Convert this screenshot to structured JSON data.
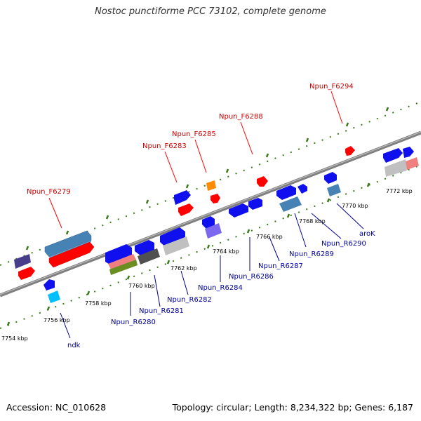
{
  "title": "Nostoc punctiforme PCC 73102, complete genome",
  "footer": {
    "accession": "Accession: NC_010628",
    "summary": "Topology: circular; Length: 8,234,322 bp; Genes: 6,187"
  },
  "ticks": [
    "7754 kbp",
    "7756 kbp",
    "7758 kbp",
    "7760 kbp",
    "7762 kbp",
    "7764 kbp",
    "7766 kbp",
    "7768 kbp",
    "7770 kbp",
    "7772 kbp"
  ],
  "forward_labels": [
    "Npun_F6279",
    "Npun_F6283",
    "Npun_F6285",
    "Npun_F6288",
    "Npun_F6294"
  ],
  "reverse_labels": [
    "ndk",
    "Npun_R6280",
    "Npun_R6281",
    "Npun_R6282",
    "Npun_R6284",
    "Npun_R6286",
    "Npun_R6287",
    "Npun_R6289",
    "Npun_R6290",
    "aroK"
  ],
  "colors": {
    "forward_label": "#cc0000",
    "reverse_label": "#000099",
    "backbone": "#888888",
    "tick": "#3a7a1a"
  }
}
